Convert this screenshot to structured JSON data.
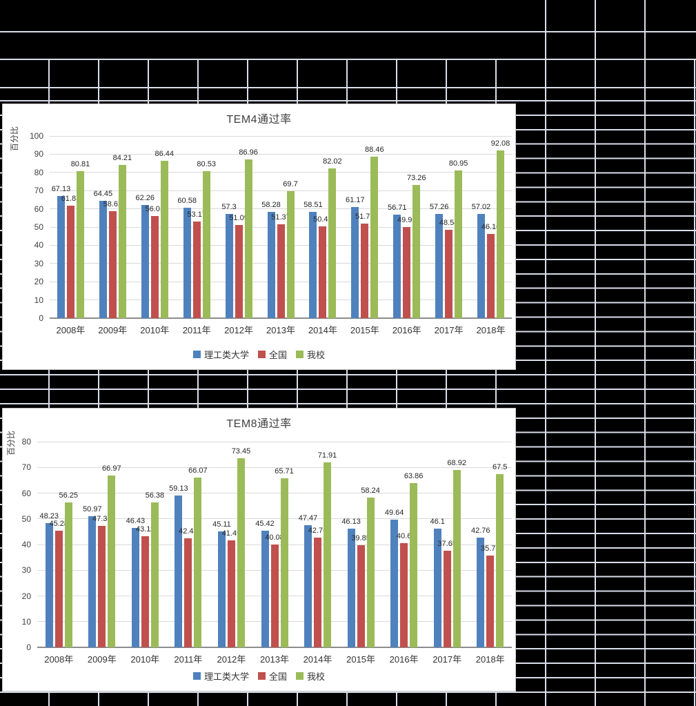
{
  "sheet": {
    "background_color": "#000000",
    "gridline_color": "#dbdfeb"
  },
  "chart_data": [
    {
      "type": "bar",
      "title": "TEM4通过率",
      "ylabel": "百分比",
      "xlabel": "",
      "ylim": [
        0,
        100
      ],
      "ystep": 10,
      "grid": true,
      "legend_position": "bottom",
      "categories": [
        "2008年",
        "2009年",
        "2010年",
        "2011年",
        "2012年",
        "2013年",
        "2014年",
        "2015年",
        "2016年",
        "2017年",
        "2018年"
      ],
      "series": [
        {
          "name": "理工类大学",
          "color": "#4F81BD",
          "values": [
            67.13,
            64.45,
            62.26,
            60.58,
            57.3,
            58.28,
            58.51,
            61.17,
            56.71,
            57.26,
            57.02
          ]
        },
        {
          "name": "全国",
          "color": "#C0504D",
          "values": [
            61.83,
            58.62,
            56.01,
            53.17,
            51.09,
            51.37,
            50.43,
            51.79,
            49.92,
            48.54,
            46.16
          ]
        },
        {
          "name": "我校",
          "color": "#9BBB59",
          "values": [
            80.81,
            84.21,
            86.44,
            80.53,
            86.96,
            69.7,
            82.02,
            88.46,
            73.26,
            80.95,
            92.08
          ]
        }
      ]
    },
    {
      "type": "bar",
      "title": "TEM8通过率",
      "ylabel": "百分比",
      "xlabel": "",
      "ylim": [
        0,
        80
      ],
      "ystep": 10,
      "grid": true,
      "legend_position": "bottom",
      "categories": [
        "2008年",
        "2009年",
        "2010年",
        "2011年",
        "2012年",
        "2013年",
        "2014年",
        "2015年",
        "2016年",
        "2017年",
        "2018年"
      ],
      "series": [
        {
          "name": "理工类大学",
          "color": "#4F81BD",
          "values": [
            48.23,
            50.97,
            46.43,
            59.13,
            45.11,
            45.42,
            47.47,
            46.13,
            49.64,
            46.1,
            42.76
          ]
        },
        {
          "name": "全国",
          "color": "#C0504D",
          "values": [
            45.28,
            47.33,
            43.11,
            42.44,
            41.49,
            40.08,
            42.76,
            39.85,
            40.6,
            37.65,
            35.78
          ]
        },
        {
          "name": "我校",
          "color": "#9BBB59",
          "values": [
            56.25,
            66.97,
            56.38,
            66.07,
            73.45,
            65.71,
            71.91,
            58.24,
            63.86,
            68.92,
            67.5
          ]
        }
      ]
    }
  ]
}
